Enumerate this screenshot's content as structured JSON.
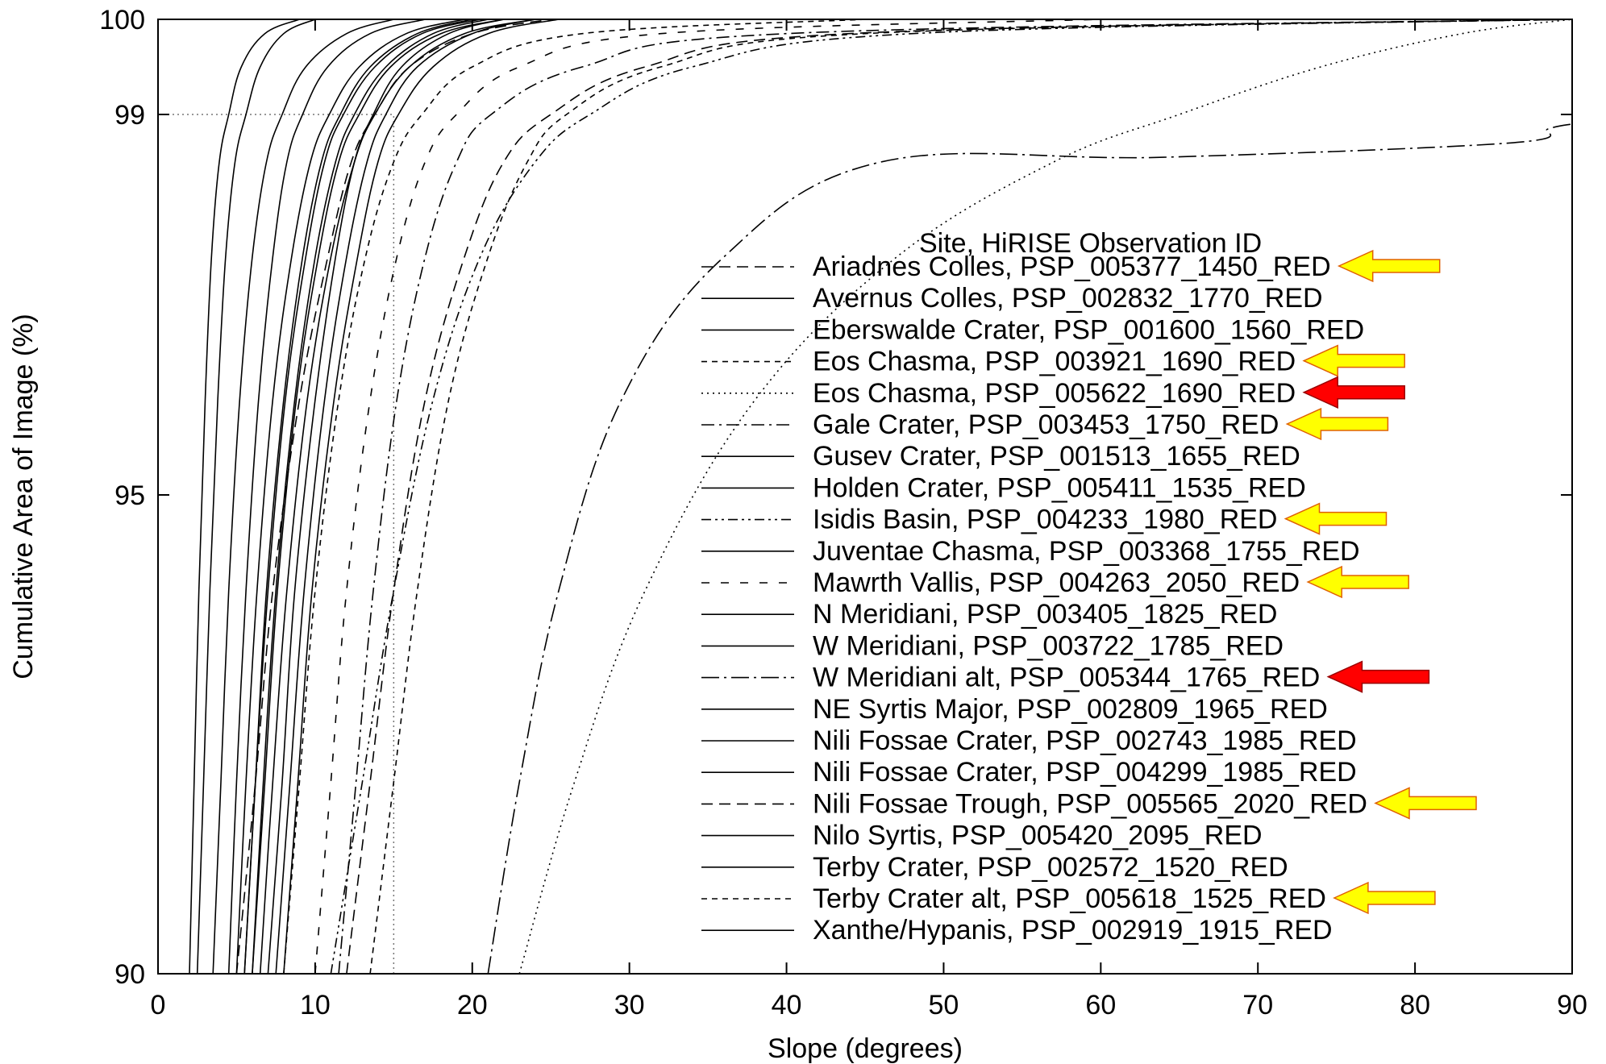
{
  "chart_data": {
    "type": "line",
    "xlabel": "Slope (degrees)",
    "ylabel": "Cumulative Area of Image (%)",
    "xlim": [
      0,
      90
    ],
    "ylim": [
      90,
      100
    ],
    "y_scale": "non-linear (expanded near 100%)",
    "xticks": [
      0,
      10,
      20,
      30,
      40,
      50,
      60,
      70,
      80,
      90
    ],
    "yticks": [
      90,
      95,
      99,
      100
    ],
    "reference_lines": [
      {
        "type": "horizontal",
        "y": 99,
        "x_to": 15,
        "style": "dotted"
      },
      {
        "type": "vertical",
        "x": 15,
        "y_from": 90,
        "y_to": 99,
        "style": "dotted"
      }
    ],
    "grid": false,
    "legend": {
      "title": "Site, HiRISE Observation ID",
      "placement": "right"
    },
    "series": [
      {
        "name": "Ariadnes Colles, PSP_005377_1450_RED",
        "dash": "dashed",
        "arrow": "#ffff00",
        "x": [
          5.0,
          6.2,
          7.3,
          9.0,
          10.8,
          12.3,
          13.8,
          16.0,
          20.0,
          25.0
        ],
        "y": [
          90,
          92,
          94,
          96,
          97.5,
          98.5,
          99.0,
          99.5,
          99.85,
          100
        ]
      },
      {
        "name": "Avernus Colles, PSP_002832_1770_RED",
        "dash": "solid",
        "x": [
          2.5,
          2.9,
          3.3,
          3.8,
          4.3,
          4.9,
          5.6,
          6.5,
          8.0,
          10.0
        ],
        "y": [
          90,
          92,
          94,
          96,
          97.5,
          98.5,
          99.0,
          99.5,
          99.85,
          100
        ]
      },
      {
        "name": "Eberswalde Crater, PSP_001600_1560_RED",
        "dash": "solid",
        "x": [
          7.0,
          7.9,
          8.7,
          10.0,
          11.3,
          12.5,
          13.7,
          15.5,
          18.5,
          22.0
        ],
        "y": [
          90,
          92,
          94,
          96,
          97.5,
          98.5,
          99.0,
          99.5,
          99.85,
          100
        ]
      },
      {
        "name": "Eos Chasma, PSP_003921_1690_RED",
        "dash": "dashed-short",
        "arrow": "#ffff00",
        "x": [
          13.5,
          15.0,
          16.5,
          18.5,
          21.0,
          23.5,
          26.0,
          32.0,
          45.0,
          90.0
        ],
        "y": [
          90,
          92,
          94,
          96,
          97.5,
          98.5,
          99.0,
          99.5,
          99.85,
          100
        ]
      },
      {
        "name": "Eos Chasma, PSP_005622_1690_RED",
        "dash": "dotted",
        "arrow": "#ff0000",
        "x": [
          23.0,
          26.5,
          31.0,
          38.0,
          47.0,
          57.0,
          65.0,
          74.0,
          83.0,
          90.0
        ],
        "y": [
          90,
          92,
          94,
          96,
          97.5,
          98.5,
          99.0,
          99.5,
          99.85,
          100
        ]
      },
      {
        "name": "Gale Crater, PSP_003453_1750_RED",
        "dash": "dash-dot",
        "arrow": "#ffff00",
        "x": [
          11.5,
          12.6,
          13.7,
          15.2,
          17.0,
          19.0,
          21.2,
          27.0,
          40.0,
          90.0
        ],
        "y": [
          90,
          92,
          94,
          96,
          97.5,
          98.5,
          99.0,
          99.5,
          99.85,
          100
        ]
      },
      {
        "name": "Gusev Crater, PSP_001513_1655_RED",
        "dash": "solid",
        "x": [
          4.5,
          5.0,
          5.6,
          6.4,
          7.3,
          8.2,
          9.2,
          10.8,
          13.5,
          17.0
        ],
        "y": [
          90,
          92,
          94,
          96,
          97.5,
          98.5,
          99.0,
          99.5,
          99.85,
          100
        ]
      },
      {
        "name": "Holden Crater, PSP_005411_1535_RED",
        "dash": "solid",
        "x": [
          5.5,
          6.2,
          6.9,
          8.0,
          9.2,
          10.4,
          11.6,
          13.5,
          16.5,
          20.0
        ],
        "y": [
          90,
          92,
          94,
          96,
          97.5,
          98.5,
          99.0,
          99.5,
          99.85,
          100
        ]
      },
      {
        "name": "Isidis Basin, PSP_004233_1980_RED",
        "dash": "dash-dot-dot",
        "arrow": "#ffff00",
        "x": [
          11.0,
          13.0,
          15.0,
          17.5,
          20.5,
          24.0,
          27.5,
          34.0,
          48.0,
          90.0
        ],
        "y": [
          90,
          92,
          94,
          96,
          97.5,
          98.5,
          99.0,
          99.5,
          99.85,
          100
        ]
      },
      {
        "name": "Juventae Chasma, PSP_003368_1755_RED",
        "dash": "solid",
        "x": [
          6.5,
          7.3,
          8.2,
          9.5,
          11.0,
          12.5,
          13.8,
          16.0,
          19.5,
          24.0
        ],
        "y": [
          90,
          92,
          94,
          96,
          97.5,
          98.5,
          99.0,
          99.5,
          99.85,
          100
        ]
      },
      {
        "name": "Mawrth Vallis, PSP_004263_2050_RED",
        "dash": "dashed-long-gap",
        "arrow": "#ffff00",
        "x": [
          10.0,
          11.0,
          12.0,
          13.5,
          15.2,
          17.0,
          19.0,
          23.0,
          32.0,
          60.0
        ],
        "y": [
          90,
          92,
          94,
          96,
          97.5,
          98.5,
          99.0,
          99.5,
          99.85,
          100
        ]
      },
      {
        "name": "N Meridiani, PSP_003405_1825_RED",
        "dash": "solid",
        "x": [
          6.0,
          6.7,
          7.5,
          8.7,
          10.0,
          11.3,
          12.5,
          14.5,
          17.5,
          21.0
        ],
        "y": [
          90,
          92,
          94,
          96,
          97.5,
          98.5,
          99.0,
          99.5,
          99.85,
          100
        ]
      },
      {
        "name": "W Meridiani, PSP_003722_1785_RED",
        "dash": "solid",
        "x": [
          7.5,
          8.4,
          9.3,
          10.6,
          12.0,
          13.3,
          14.5,
          16.5,
          20.0,
          24.0
        ],
        "y": [
          90,
          92,
          94,
          96,
          97.5,
          98.5,
          99.0,
          99.5,
          99.85,
          100
        ]
      },
      {
        "name": "W Meridiani alt, PSP_005344_1765_RED",
        "dash": "dash-dot-long",
        "arrow": "#ff0000",
        "x": [
          21.0,
          23.0,
          25.5,
          29.5,
          36.0,
          46.0,
          64.0,
          86.0,
          88.5,
          90.0
        ],
        "y": [
          90,
          92,
          94,
          96,
          97.5,
          98.5,
          98.55,
          98.7,
          98.85,
          98.9
        ]
      },
      {
        "name": "NE Syrtis Major, PSP_002809_1965_RED",
        "dash": "solid",
        "x": [
          5.5,
          6.2,
          7.0,
          8.1,
          9.4,
          10.6,
          11.8,
          13.8,
          16.8,
          20.5
        ],
        "y": [
          90,
          92,
          94,
          96,
          97.5,
          98.5,
          99.0,
          99.5,
          99.85,
          100
        ]
      },
      {
        "name": "Nili Fossae Crater, PSP_002743_1985_RED",
        "dash": "solid",
        "x": [
          6.0,
          6.8,
          7.6,
          8.8,
          10.2,
          11.5,
          12.8,
          14.8,
          18.0,
          22.0
        ],
        "y": [
          90,
          92,
          94,
          96,
          97.5,
          98.5,
          99.0,
          99.5,
          99.85,
          100
        ]
      },
      {
        "name": "Nili Fossae Crater, PSP_004299_1985_RED",
        "dash": "solid",
        "x": [
          5.0,
          5.6,
          6.3,
          7.3,
          8.5,
          9.7,
          10.9,
          12.8,
          15.8,
          19.5
        ],
        "y": [
          90,
          92,
          94,
          96,
          97.5,
          98.5,
          99.0,
          99.5,
          99.85,
          100
        ]
      },
      {
        "name": "Nili Fossae Trough, PSP_005565_2020_RED",
        "dash": "dashed",
        "arrow": "#ffff00",
        "x": [
          12.0,
          13.5,
          15.0,
          17.0,
          19.5,
          22.0,
          25.0,
          31.0,
          44.0,
          90.0
        ],
        "y": [
          90,
          92,
          94,
          96,
          97.5,
          98.5,
          99.0,
          99.5,
          99.85,
          100
        ]
      },
      {
        "name": "Nilo Syrtis, PSP_005420_2095_RED",
        "dash": "solid",
        "x": [
          3.5,
          4.0,
          4.5,
          5.2,
          6.0,
          6.9,
          7.9,
          9.4,
          12.0,
          15.0
        ],
        "y": [
          90,
          92,
          94,
          96,
          97.5,
          98.5,
          99.0,
          99.5,
          99.85,
          100
        ]
      },
      {
        "name": "Terby Crater, PSP_002572_1520_RED",
        "dash": "solid",
        "x": [
          2.0,
          2.3,
          2.6,
          3.0,
          3.4,
          3.9,
          4.5,
          5.3,
          6.8,
          9.0
        ],
        "y": [
          90,
          92,
          94,
          96,
          97.5,
          98.5,
          99.0,
          99.5,
          99.85,
          100
        ]
      },
      {
        "name": "Terby Crater alt, PSP_005618_1525_RED",
        "dash": "dashed-short",
        "arrow": "#ffff00",
        "x": [
          8.0,
          9.0,
          10.0,
          11.5,
          13.2,
          15.0,
          16.8,
          20.0,
          27.0,
          45.0
        ],
        "y": [
          90,
          92,
          94,
          96,
          97.5,
          98.5,
          99.0,
          99.5,
          99.85,
          100
        ]
      },
      {
        "name": "Xanthe/Hypanis, PSP_002919_1915_RED",
        "dash": "solid",
        "x": [
          8.0,
          8.9,
          9.8,
          11.2,
          12.7,
          14.0,
          15.3,
          17.5,
          21.0,
          25.5
        ],
        "y": [
          90,
          92,
          94,
          96,
          97.5,
          98.5,
          99.0,
          99.5,
          99.85,
          100
        ]
      }
    ]
  }
}
